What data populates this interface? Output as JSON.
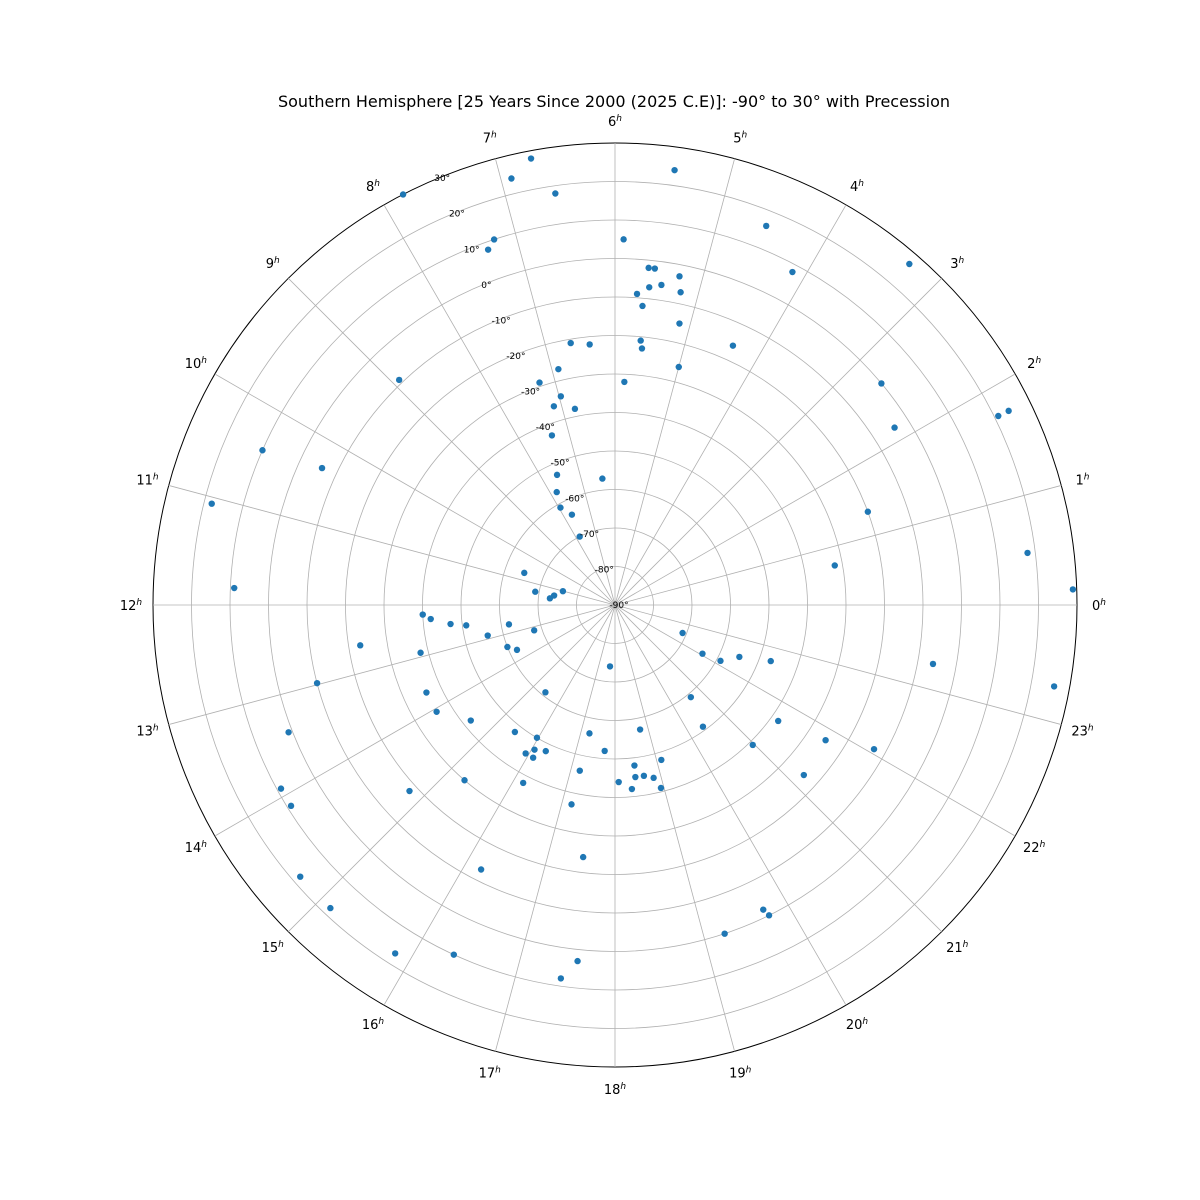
{
  "chart_data": {
    "type": "scatter",
    "projection": "polar",
    "title": "Southern Hemisphere [25 Years Since 2000 (2025 C.E)]: -90° to 30° with Precession",
    "hour_labels": [
      "0",
      "1",
      "2",
      "3",
      "4",
      "5",
      "6",
      "7",
      "8",
      "9",
      "10",
      "11",
      "12",
      "13",
      "14",
      "15",
      "16",
      "17",
      "18",
      "19",
      "20",
      "21",
      "22",
      "23"
    ],
    "hour_suffix": "h",
    "dec_ticks": [
      -90,
      -80,
      -70,
      -60,
      -50,
      -40,
      -30,
      -20,
      -10,
      0,
      10,
      20,
      30
    ],
    "dec_tick_labels": [
      "-90°",
      "-80°",
      "-70°",
      "-60°",
      "-50°",
      "-40°",
      "-30°",
      "-20°",
      "-10°",
      "0°",
      "10°",
      "20°",
      "30°"
    ],
    "rlim": [
      -90,
      30
    ],
    "marker_color": "#1f77b4",
    "grid": true,
    "points": [
      {
        "ra": 0.13,
        "dec": 29.0
      },
      {
        "ra": 0.48,
        "dec": 18.0
      },
      {
        "ra": 0.68,
        "dec": -32.0
      },
      {
        "ra": 1.35,
        "dec": -20.0
      },
      {
        "ra": 1.75,
        "dec": 21.0
      },
      {
        "ra": 1.75,
        "dec": 24.0
      },
      {
        "ra": 2.16,
        "dec": -4.0
      },
      {
        "ra": 2.65,
        "dec": 0.0
      },
      {
        "ra": 3.28,
        "dec": 27.0
      },
      {
        "ra": 4.13,
        "dec": 8.0
      },
      {
        "ra": 4.37,
        "dec": -16.0
      },
      {
        "ra": 4.55,
        "dec": 16.0
      },
      {
        "ra": 5.48,
        "dec": 24.0
      },
      {
        "ra": 5.0,
        "dec": -26.0
      },
      {
        "ra": 5.14,
        "dec": -15.0
      },
      {
        "ra": 5.21,
        "dec": -7.0
      },
      {
        "ra": 5.26,
        "dec": -3.0
      },
      {
        "ra": 5.45,
        "dec": -6.0
      },
      {
        "ra": 5.55,
        "dec": -2.0
      },
      {
        "ra": 5.62,
        "dec": -2.0
      },
      {
        "ra": 5.65,
        "dec": -12.0
      },
      {
        "ra": 5.59,
        "dec": -7.0
      },
      {
        "ra": 5.73,
        "dec": -9.0
      },
      {
        "ra": 5.63,
        "dec": -21.0
      },
      {
        "ra": 5.6,
        "dec": -23.0
      },
      {
        "ra": 5.91,
        "dec": 5.0
      },
      {
        "ra": 5.84,
        "dec": -32.0
      },
      {
        "ra": 6.38,
        "dec": -57.0
      },
      {
        "ra": 6.37,
        "dec": -22.0
      },
      {
        "ra": 6.64,
        "dec": -21.0
      },
      {
        "ra": 6.77,
        "dec": -38.0
      },
      {
        "ra": 6.9,
        "dec": -27.0
      },
      {
        "ra": 6.97,
        "dec": -34.0
      },
      {
        "ra": 7.14,
        "dec": -36.0
      },
      {
        "ra": 7.25,
        "dec": -29.0
      },
      {
        "ra": 7.36,
        "dec": -43.0
      },
      {
        "ra": 7.6,
        "dec": -53.0
      },
      {
        "ra": 7.82,
        "dec": -57.0
      },
      {
        "ra": 7.7,
        "dec": -64.0
      },
      {
        "ra": 7.95,
        "dec": -61.0
      },
      {
        "ra": 7.82,
        "dec": -70.0
      },
      {
        "ra": 6.55,
        "dec": 18.0
      },
      {
        "ra": 6.91,
        "dec": 24.0
      },
      {
        "ra": 6.71,
        "dec": 28.0
      },
      {
        "ra": 7.22,
        "dec": 10.0
      },
      {
        "ra": 7.31,
        "dec": 8.0
      },
      {
        "ra": 7.82,
        "dec": 30.0
      },
      {
        "ra": 8.92,
        "dec": -9.0
      },
      {
        "ra": 10.33,
        "dec": -6.0
      },
      {
        "ra": 10.42,
        "dec": 10.0
      },
      {
        "ra": 11.06,
        "dec": 18.0
      },
      {
        "ra": 11.83,
        "dec": 9.0
      },
      {
        "ra": 10.7,
        "dec": -65.0
      },
      {
        "ra": 11.01,
        "dec": -76.0
      },
      {
        "ra": 11.37,
        "dec": -69.0
      },
      {
        "ra": 11.41,
        "dec": -74.0
      },
      {
        "ra": 11.61,
        "dec": -73.0
      },
      {
        "ra": 12.19,
        "dec": -40.0
      },
      {
        "ra": 12.29,
        "dec": -42.0
      },
      {
        "ra": 12.44,
        "dec": -47.0
      },
      {
        "ra": 12.6,
        "dec": -23.0
      },
      {
        "ra": 12.52,
        "dec": -51.0
      },
      {
        "ra": 12.69,
        "dec": -62.0
      },
      {
        "ra": 12.9,
        "dec": -56.0
      },
      {
        "ra": 12.92,
        "dec": -38.0
      },
      {
        "ra": 13.16,
        "dec": -68.0
      },
      {
        "ra": 13.42,
        "dec": -60.0
      },
      {
        "ra": 13.64,
        "dec": -62.0
      },
      {
        "ra": 13.66,
        "dec": -36.0
      },
      {
        "ra": 12.98,
        "dec": -10.0
      },
      {
        "ra": 13.42,
        "dec": 1.0
      },
      {
        "ra": 13.92,
        "dec": 9.0
      },
      {
        "ra": 14.12,
        "dec": 9.0
      },
      {
        "ra": 14.06,
        "dec": -36.0
      },
      {
        "ra": 14.58,
        "dec": -42.0
      },
      {
        "ra": 14.81,
        "dec": -18.0
      },
      {
        "ra": 14.72,
        "dec": 18.0
      },
      {
        "ra": 15.12,
        "dec": 18.0
      },
      {
        "ra": 15.29,
        "dec": -30.0
      },
      {
        "ra": 15.43,
        "dec": -61.0
      },
      {
        "ra": 15.45,
        "dec": -48.0
      },
      {
        "ra": 15.97,
        "dec": -50.0
      },
      {
        "ra": 15.93,
        "dec": -45.0
      },
      {
        "ra": 16.06,
        "dec": -47.0
      },
      {
        "ra": 16.12,
        "dec": -45.0
      },
      {
        "ra": 16.21,
        "dec": -13.0
      },
      {
        "ra": 16.18,
        "dec": -38.0
      },
      {
        "ra": 16.31,
        "dec": -48.0
      },
      {
        "ra": 16.35,
        "dec": 10.0
      },
      {
        "ra": 15.85,
        "dec": 17.0
      },
      {
        "ra": 17.25,
        "dec": -56.0
      },
      {
        "ra": 17.2,
        "dec": -46.0
      },
      {
        "ra": 17.18,
        "dec": -37.0
      },
      {
        "ra": 17.6,
        "dec": 3.0
      },
      {
        "ra": 17.52,
        "dec": -24.0
      },
      {
        "ra": 17.45,
        "dec": 8.0
      },
      {
        "ra": 17.69,
        "dec": -74.0
      },
      {
        "ra": 17.73,
        "dec": -52.0
      },
      {
        "ra": 18.08,
        "dec": -44.0
      },
      {
        "ra": 18.35,
        "dec": -42.0
      },
      {
        "ra": 18.45,
        "dec": -45.0
      },
      {
        "ra": 18.46,
        "dec": -48.0
      },
      {
        "ra": 18.64,
        "dec": -45.0
      },
      {
        "ra": 18.76,
        "dec": -57.0
      },
      {
        "ra": 18.84,
        "dec": -44.0
      },
      {
        "ra": 18.94,
        "dec": -41.0
      },
      {
        "ra": 19.11,
        "dec": -48.0
      },
      {
        "ra": 19.23,
        "dec": 0.0
      },
      {
        "ra": 19.73,
        "dec": -2.0
      },
      {
        "ra": 19.76,
        "dec": 0.0
      },
      {
        "ra": 20.39,
        "dec": -51.0
      },
      {
        "ra": 20.63,
        "dec": -59.0
      },
      {
        "ra": 20.97,
        "dec": -39.0
      },
      {
        "ra": 21.2,
        "dec": -24.0
      },
      {
        "ra": 21.64,
        "dec": -38.0
      },
      {
        "ra": 21.82,
        "dec": -25.0
      },
      {
        "ra": 22.06,
        "dec": -64.0
      },
      {
        "ra": 22.14,
        "dec": -59.0
      },
      {
        "ra": 22.49,
        "dec": -55.0
      },
      {
        "ra": 22.5,
        "dec": -71.0
      },
      {
        "ra": 22.06,
        "dec": -13.0
      },
      {
        "ra": 22.68,
        "dec": -47.0
      },
      {
        "ra": 23.3,
        "dec": -6.0
      },
      {
        "ra": 23.3,
        "dec": 26.0
      }
    ]
  }
}
